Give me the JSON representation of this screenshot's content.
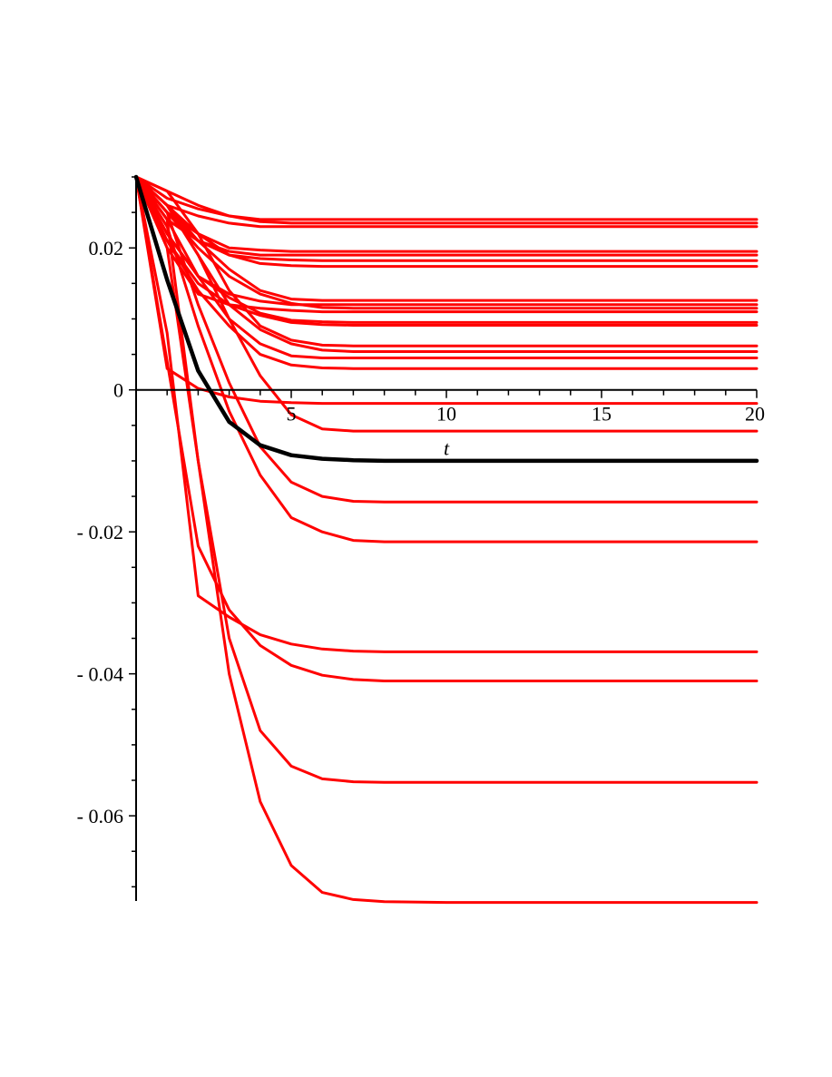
{
  "chart_data": {
    "type": "line",
    "xlabel": "t",
    "ylabel": "",
    "xlim": [
      0,
      20
    ],
    "ylim": [
      -0.072,
      0.03
    ],
    "x_ticks": [
      5,
      10,
      15,
      20
    ],
    "x_tick_labels": [
      "5",
      "10",
      "15",
      "20"
    ],
    "y_ticks": [
      0.02,
      0,
      -0.02,
      -0.04,
      -0.06
    ],
    "y_tick_labels": [
      "0.02",
      "0",
      "- 0.02",
      "- 0.04",
      "- 0.06"
    ],
    "grid": false,
    "legend": "none",
    "series_colors": {
      "sample": "#ff0000",
      "mean": "#000000"
    },
    "x": [
      0,
      1,
      2,
      3,
      4,
      5,
      6,
      7,
      8,
      10,
      12,
      15,
      20
    ],
    "series": [
      {
        "color": "#000000",
        "values": [
          0.03,
          0.0155,
          0.0027,
          -0.0045,
          -0.0078,
          -0.0092,
          -0.0097,
          -0.0099,
          -0.01,
          -0.01,
          -0.01,
          -0.01,
          -0.01
        ]
      },
      {
        "color": "#ff0000",
        "values": [
          0.03,
          0.027,
          0.0255,
          0.0245,
          0.024,
          0.024,
          0.024,
          0.024,
          0.024,
          0.024,
          0.024,
          0.024,
          0.024
        ]
      },
      {
        "color": "#ff0000",
        "values": [
          0.03,
          0.028,
          0.026,
          0.0245,
          0.0237,
          0.0235,
          0.0235,
          0.0235,
          0.0235,
          0.0235,
          0.0235,
          0.0235,
          0.0235
        ]
      },
      {
        "color": "#ff0000",
        "values": [
          0.03,
          0.026,
          0.0245,
          0.0235,
          0.023,
          0.023,
          0.023,
          0.023,
          0.023,
          0.023,
          0.023,
          0.023,
          0.023
        ]
      },
      {
        "color": "#ff0000",
        "values": [
          0.03,
          0.025,
          0.022,
          0.02,
          0.0197,
          0.0195,
          0.0195,
          0.0195,
          0.0195,
          0.0195,
          0.0195,
          0.0195,
          0.0195
        ]
      },
      {
        "color": "#ff0000",
        "values": [
          0.03,
          0.025,
          0.021,
          0.0195,
          0.019,
          0.019,
          0.019,
          0.019,
          0.019,
          0.019,
          0.019,
          0.019,
          0.019
        ]
      },
      {
        "color": "#ff0000",
        "values": [
          0.03,
          0.024,
          0.021,
          0.019,
          0.0185,
          0.0183,
          0.0182,
          0.0182,
          0.0182,
          0.0182,
          0.0182,
          0.0182,
          0.0182
        ]
      },
      {
        "color": "#ff0000",
        "values": [
          0.03,
          0.026,
          0.022,
          0.019,
          0.0178,
          0.0175,
          0.0174,
          0.0174,
          0.0174,
          0.0174,
          0.0174,
          0.0174,
          0.0174
        ]
      },
      {
        "color": "#ff0000",
        "values": [
          0.03,
          0.026,
          0.021,
          0.017,
          0.014,
          0.0128,
          0.0126,
          0.0126,
          0.0126,
          0.0126,
          0.0126,
          0.0126,
          0.0126
        ]
      },
      {
        "color": "#ff0000",
        "values": [
          0.03,
          0.022,
          0.016,
          0.0135,
          0.0125,
          0.012,
          0.012,
          0.012,
          0.012,
          0.012,
          0.012,
          0.012,
          0.012
        ]
      },
      {
        "color": "#ff0000",
        "values": [
          0.03,
          0.025,
          0.02,
          0.016,
          0.0135,
          0.0122,
          0.0116,
          0.0115,
          0.0115,
          0.0115,
          0.0115,
          0.0115,
          0.0115
        ]
      },
      {
        "color": "#ff0000",
        "values": [
          0.03,
          0.02,
          0.0135,
          0.012,
          0.0115,
          0.0112,
          0.011,
          0.011,
          0.011,
          0.011,
          0.011,
          0.011,
          0.011
        ]
      },
      {
        "color": "#ff0000",
        "values": [
          0.03,
          0.022,
          0.016,
          0.013,
          0.0108,
          0.0098,
          0.0096,
          0.0095,
          0.0095,
          0.0095,
          0.0095,
          0.0095,
          0.0095
        ]
      },
      {
        "color": "#ff0000",
        "values": [
          0.03,
          0.021,
          0.015,
          0.012,
          0.0105,
          0.0095,
          0.0092,
          0.0091,
          0.0091,
          0.0091,
          0.0091,
          0.0091,
          0.0091
        ]
      },
      {
        "color": "#ff0000",
        "values": [
          0.03,
          0.028,
          0.022,
          0.014,
          0.009,
          0.007,
          0.0063,
          0.0062,
          0.0062,
          0.0062,
          0.0062,
          0.0062,
          0.0062
        ]
      },
      {
        "color": "#ff0000",
        "values": [
          0.03,
          0.026,
          0.019,
          0.012,
          0.0085,
          0.0065,
          0.0056,
          0.0054,
          0.0054,
          0.0054,
          0.0054,
          0.0054,
          0.0054
        ]
      },
      {
        "color": "#ff0000",
        "values": [
          0.03,
          0.024,
          0.016,
          0.01,
          0.0065,
          0.0048,
          0.0045,
          0.0045,
          0.0045,
          0.0045,
          0.0045,
          0.0045,
          0.0045
        ]
      },
      {
        "color": "#ff0000",
        "values": [
          0.03,
          0.021,
          0.014,
          0.009,
          0.005,
          0.0035,
          0.0031,
          0.003,
          0.003,
          0.003,
          0.003,
          0.003,
          0.003
        ]
      },
      {
        "color": "#ff0000",
        "values": [
          0.03,
          0.003,
          0.0002,
          -0.001,
          -0.0016,
          -0.0018,
          -0.0019,
          -0.0019,
          -0.0019,
          -0.0019,
          -0.0019,
          -0.0019,
          -0.0019
        ]
      },
      {
        "color": "#ff0000",
        "values": [
          0.03,
          0.026,
          0.019,
          0.01,
          0.002,
          -0.0035,
          -0.0055,
          -0.0058,
          -0.0058,
          -0.0058,
          -0.0058,
          -0.0058,
          -0.0058
        ]
      },
      {
        "color": "#ff0000",
        "values": [
          0.03,
          0.025,
          0.012,
          0.001,
          -0.008,
          -0.013,
          -0.015,
          -0.0157,
          -0.0158,
          -0.0158,
          -0.0158,
          -0.0158,
          -0.0158
        ]
      },
      {
        "color": "#ff0000",
        "values": [
          0.03,
          0.023,
          0.009,
          -0.003,
          -0.012,
          -0.018,
          -0.02,
          -0.0212,
          -0.0214,
          -0.0214,
          -0.0214,
          -0.0214,
          -0.0214
        ]
      },
      {
        "color": "#ff0000",
        "values": [
          0.03,
          0.008,
          -0.029,
          -0.032,
          -0.0345,
          -0.0358,
          -0.0365,
          -0.0368,
          -0.0369,
          -0.0369,
          -0.0369,
          -0.0369,
          -0.0369
        ]
      },
      {
        "color": "#ff0000",
        "values": [
          0.03,
          0.004,
          -0.022,
          -0.031,
          -0.036,
          -0.0388,
          -0.0402,
          -0.0408,
          -0.041,
          -0.041,
          -0.041,
          -0.041,
          -0.041
        ]
      },
      {
        "color": "#ff0000",
        "values": [
          0.03,
          0.024,
          -0.01,
          -0.035,
          -0.048,
          -0.053,
          -0.0548,
          -0.0552,
          -0.0553,
          -0.0553,
          -0.0553,
          -0.0553,
          -0.0553
        ]
      },
      {
        "color": "#ff0000",
        "values": [
          0.03,
          0.02,
          -0.01,
          -0.04,
          -0.058,
          -0.067,
          -0.0708,
          -0.0718,
          -0.0721,
          -0.0722,
          -0.0722,
          -0.0722,
          -0.0722
        ]
      }
    ]
  }
}
